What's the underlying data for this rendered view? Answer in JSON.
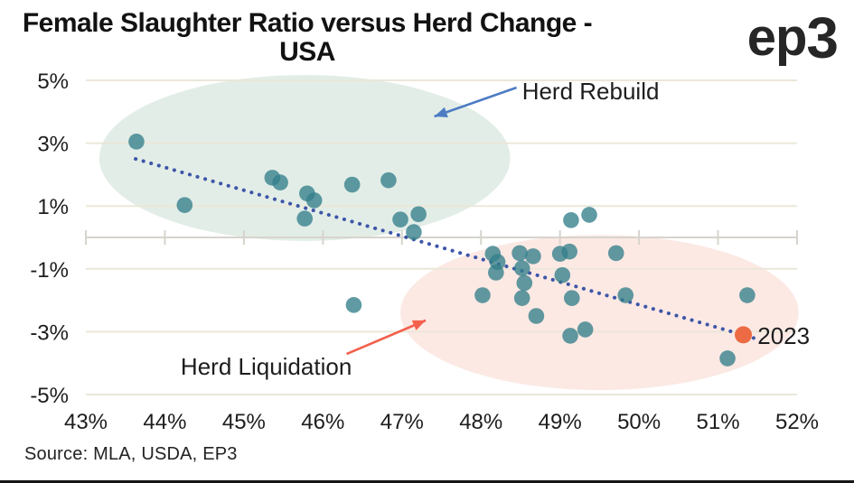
{
  "header": {
    "title_line1": "Female Slaughter Ratio versus Herd Change -",
    "title_line2": "USA",
    "logo_ep": "ep",
    "logo_three": "3"
  },
  "source": "Source: MLA, USDA, EP3",
  "chart_data": {
    "type": "scatter",
    "title": "Female Slaughter Ratio versus Herd Change - USA",
    "xlabel": "",
    "ylabel": "",
    "xlim": [
      43,
      52
    ],
    "ylim": [
      -5,
      5
    ],
    "grid": "horizontal",
    "legend": "none",
    "x_ticks": [
      {
        "value": 43,
        "label": "43%"
      },
      {
        "value": 44,
        "label": "44%"
      },
      {
        "value": 45,
        "label": "45%"
      },
      {
        "value": 46,
        "label": "46%"
      },
      {
        "value": 47,
        "label": "47%"
      },
      {
        "value": 48,
        "label": "48%"
      },
      {
        "value": 49,
        "label": "49%"
      },
      {
        "value": 50,
        "label": "50%"
      },
      {
        "value": 51,
        "label": "51%"
      },
      {
        "value": 52,
        "label": "52%"
      }
    ],
    "y_ticks": [
      {
        "value": 5,
        "label": "5%"
      },
      {
        "value": 3,
        "label": "3%"
      },
      {
        "value": 1,
        "label": "1%"
      },
      {
        "value": -1,
        "label": "-1%"
      },
      {
        "value": -3,
        "label": "-3%"
      },
      {
        "value": -5,
        "label": "-5%"
      }
    ],
    "points": [
      [
        43.64,
        3.05
      ],
      [
        44.25,
        1.03
      ],
      [
        45.36,
        1.9
      ],
      [
        45.46,
        1.75
      ],
      [
        45.8,
        1.4
      ],
      [
        45.89,
        1.18
      ],
      [
        45.77,
        0.6
      ],
      [
        46.37,
        1.68
      ],
      [
        46.83,
        1.82
      ],
      [
        46.39,
        -2.15
      ],
      [
        46.98,
        0.57
      ],
      [
        47.21,
        0.74
      ],
      [
        47.15,
        0.17
      ],
      [
        48.02,
        -1.84
      ],
      [
        48.15,
        -0.52
      ],
      [
        48.21,
        -0.78
      ],
      [
        48.19,
        -1.12
      ],
      [
        48.49,
        -0.5
      ],
      [
        48.66,
        -0.6
      ],
      [
        48.52,
        -0.98
      ],
      [
        48.55,
        -1.45
      ],
      [
        48.52,
        -1.93
      ],
      [
        48.7,
        -2.5
      ],
      [
        49.0,
        -0.52
      ],
      [
        49.12,
        -0.45
      ],
      [
        49.03,
        -1.2
      ],
      [
        49.15,
        -1.93
      ],
      [
        49.13,
        -3.13
      ],
      [
        49.32,
        -2.93
      ],
      [
        49.14,
        0.55
      ],
      [
        49.37,
        0.72
      ],
      [
        49.71,
        -0.5
      ],
      [
        49.83,
        -1.84
      ],
      [
        51.37,
        -1.84
      ],
      [
        51.12,
        -3.85
      ]
    ],
    "highlight_point": {
      "x": 51.32,
      "y": -3.1,
      "label": "2023",
      "label_x": 51.5,
      "label_y": -3.39
    },
    "trendline": {
      "style": "dotted",
      "x1": 43.63,
      "y1": 2.5,
      "x2": 51.45,
      "y2": -3.2
    },
    "regions": [
      {
        "label": "Herd Rebuild",
        "cx": 45.77,
        "cy": 2.53,
        "rx": 2.6,
        "ry": 2.64,
        "color": "#e2ede7"
      },
      {
        "label": "Herd Liquidation",
        "cx": 49.5,
        "cy": -2.39,
        "rx": 2.52,
        "ry": 2.47,
        "color": "#fce9e4"
      }
    ],
    "annotations": [
      {
        "text": "Herd Rebuild",
        "text_x": 48.52,
        "text_y": 4.4,
        "arrow": {
          "from_x": 48.45,
          "from_y": 4.77,
          "to_x": 47.41,
          "to_y": 3.85
        },
        "arrow_color": "#4d7cc3"
      },
      {
        "text": "Herd Liquidation",
        "text_x": 44.2,
        "text_y": -4.37,
        "arrow": {
          "from_x": 46.3,
          "from_y": -3.71,
          "to_x": 47.3,
          "to_y": -2.64
        },
        "arrow_color": "#f3604b"
      }
    ],
    "colors": {
      "point": "#337f8a",
      "highlight": "#ed6b44",
      "trend": "#3d56a8",
      "grid": "#ebe7d9",
      "axis": "#d7d4cd",
      "text": "#1d1d1f"
    }
  }
}
